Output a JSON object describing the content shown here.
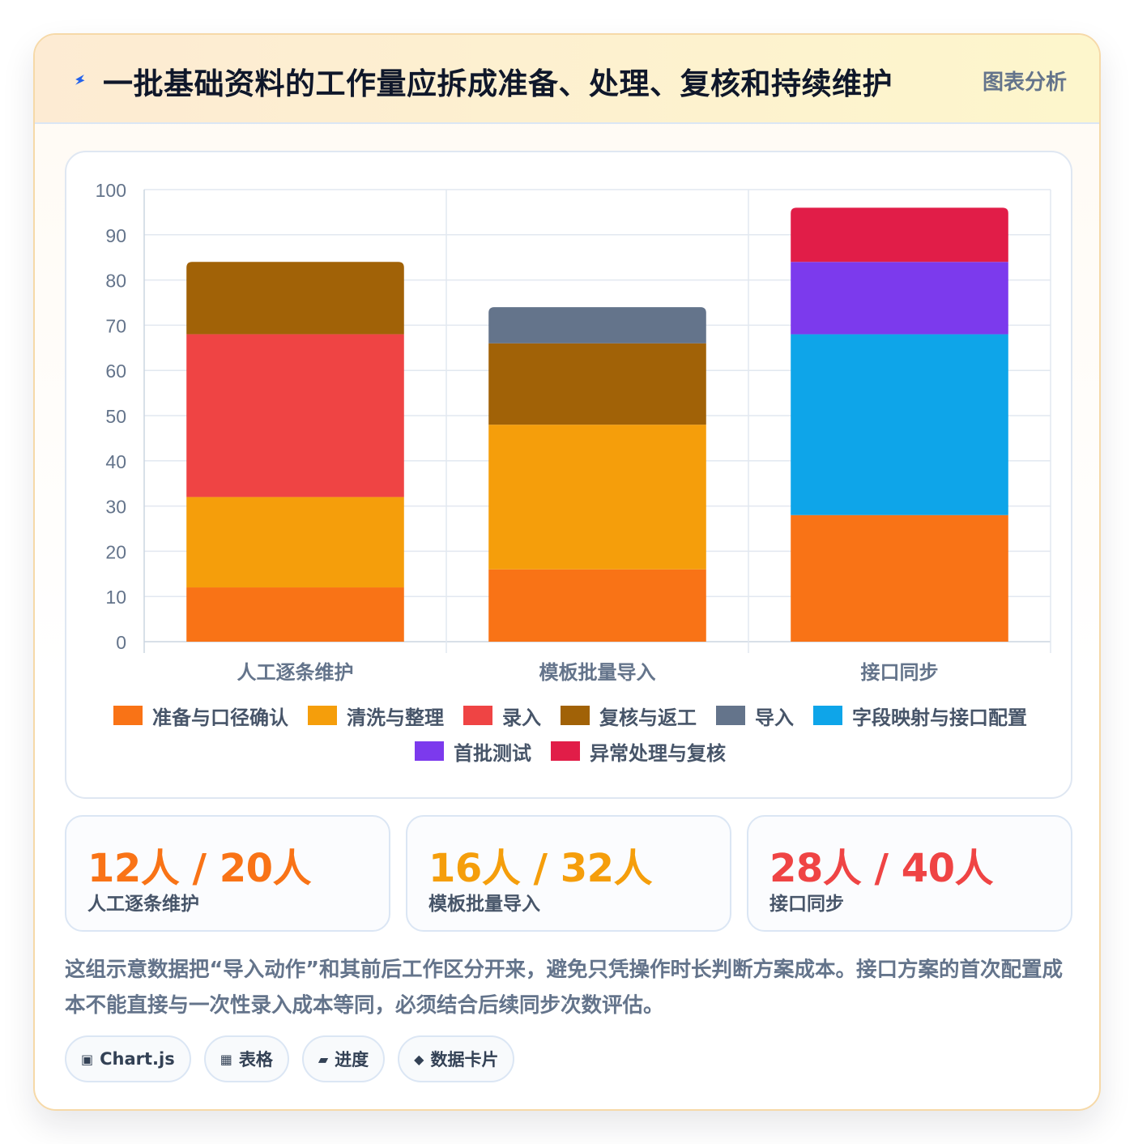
{
  "header": {
    "title": "一批基础资料的工作量应拆成准备、处理、复核和持续维护",
    "tag": "图表分析",
    "icon": "lightning-icon"
  },
  "chart_data": {
    "type": "bar",
    "stacked": true,
    "categories": [
      "人工逐条维护",
      "模板批量导入",
      "接口同步"
    ],
    "ylim": [
      0,
      100
    ],
    "yticks": [
      0,
      10,
      20,
      30,
      40,
      50,
      60,
      70,
      80,
      90,
      100
    ],
    "grid": true,
    "legend_position": "bottom",
    "series": [
      {
        "name": "准备与口径确认",
        "color": "#f97316",
        "values": [
          12,
          16,
          28
        ]
      },
      {
        "name": "清洗与整理",
        "color": "#f59e0b",
        "values": [
          20,
          32,
          0
        ]
      },
      {
        "name": "录入",
        "color": "#ef4444",
        "values": [
          36,
          0,
          0
        ]
      },
      {
        "name": "复核与返工",
        "color": "#a16207",
        "values": [
          16,
          18,
          0
        ]
      },
      {
        "name": "导入",
        "color": "#64748b",
        "values": [
          0,
          8,
          0
        ]
      },
      {
        "name": "字段映射与接口配置",
        "color": "#0ea5e9",
        "values": [
          0,
          0,
          40
        ]
      },
      {
        "name": "首批测试",
        "color": "#7c3aed",
        "values": [
          0,
          0,
          16
        ]
      },
      {
        "name": "异常处理与复核",
        "color": "#e11d48",
        "values": [
          0,
          0,
          12
        ]
      }
    ]
  },
  "stats": [
    {
      "value": "12人 / 20人",
      "label": "人工逐条维护",
      "color": "#f97316"
    },
    {
      "value": "16人 / 32人",
      "label": "模板批量导入",
      "color": "#f59e0b"
    },
    {
      "value": "28人 / 40人",
      "label": "接口同步",
      "color": "#ef4444"
    }
  ],
  "note": "这组示意数据把“导入动作”和其前后工作区分开来，避免只凭操作时长判断方案成本。接口方案的首次配置成本不能直接与一次性录入成本等同，必须结合后续同步次数评估。",
  "chips": [
    {
      "icon": "▣",
      "label": "Chart.js"
    },
    {
      "icon": "▦",
      "label": "表格"
    },
    {
      "icon": "▰",
      "label": "进度"
    },
    {
      "icon": "◆",
      "label": "数据卡片"
    }
  ]
}
